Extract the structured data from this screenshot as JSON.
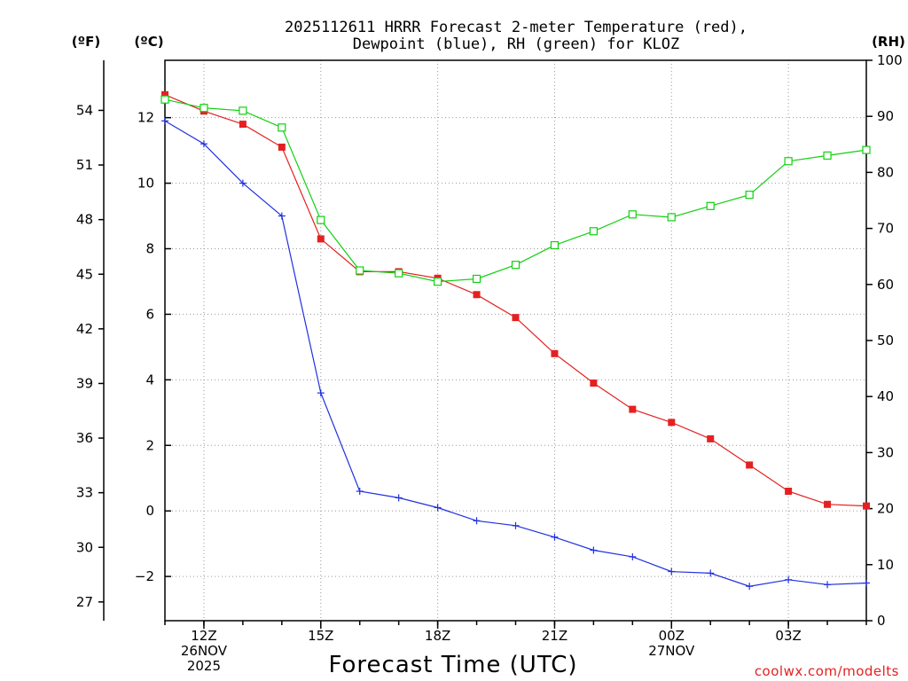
{
  "chart_data": {
    "type": "line",
    "title_line1": "2025112611 HRRR Forecast 2-meter Temperature (red),",
    "title_line2": "Dewpoint (blue), RH (green) for KLOZ",
    "xlabel": "Forecast Time (UTC)",
    "credit": "coolwx.com/modelts",
    "x_hours": [
      11,
      12,
      13,
      14,
      15,
      16,
      17,
      18,
      19,
      20,
      21,
      22,
      23,
      24,
      25,
      26,
      27,
      28,
      29
    ],
    "xlim": [
      11,
      29
    ],
    "ylim_c": [
      -3.35,
      13.75
    ],
    "ylim_rh": [
      0,
      100
    ],
    "y_ticks_c": [
      "12",
      "10",
      "8",
      "6",
      "4",
      "2",
      "0",
      "−2"
    ],
    "y_ticks_f": [
      "54",
      "51",
      "48",
      "45",
      "42",
      "39",
      "36",
      "33",
      "30",
      "27"
    ],
    "y_ticks_rh": [
      "100",
      "90",
      "80",
      "70",
      "60",
      "50",
      "40",
      "30",
      "20",
      "10",
      "0"
    ],
    "units": {
      "fahrenheit": "(ºF)",
      "celsius": "(ºC)",
      "rh": "(RH)"
    },
    "x_ticks": [
      {
        "hour": 12,
        "lines": [
          "12Z",
          "26NOV",
          "2025"
        ]
      },
      {
        "hour": 15,
        "lines": [
          "15Z"
        ]
      },
      {
        "hour": 18,
        "lines": [
          "18Z"
        ]
      },
      {
        "hour": 21,
        "lines": [
          "21Z"
        ]
      },
      {
        "hour": 24,
        "lines": [
          "00Z",
          "27NOV"
        ]
      },
      {
        "hour": 27,
        "lines": [
          "03Z"
        ]
      }
    ],
    "series": [
      {
        "name": "Temperature",
        "color": "#e52020",
        "marker": "filled-square",
        "values": [
          12.7,
          12.2,
          11.8,
          11.1,
          8.3,
          7.3,
          7.3,
          7.1,
          6.6,
          5.9,
          4.8,
          3.9,
          3.1,
          2.7,
          2.2,
          1.4,
          0.6,
          0.2,
          0.15
        ]
      },
      {
        "name": "Dewpoint",
        "color": "#2030e0",
        "marker": "plus",
        "values": [
          11.9,
          11.2,
          10.0,
          9.0,
          3.6,
          0.6,
          0.4,
          0.1,
          -0.3,
          -0.45,
          -0.8,
          -1.2,
          -1.4,
          -1.85,
          -1.9,
          -2.3,
          -2.1,
          -2.25,
          -2.2
        ]
      },
      {
        "name": "RH",
        "color": "#10d010",
        "marker": "open-square",
        "axis": "rh",
        "values": [
          93,
          91.5,
          91,
          88,
          71.5,
          62.5,
          62,
          60.5,
          61,
          63.5,
          67,
          69.5,
          72.5,
          72,
          74,
          76,
          82,
          83,
          84
        ]
      }
    ]
  }
}
